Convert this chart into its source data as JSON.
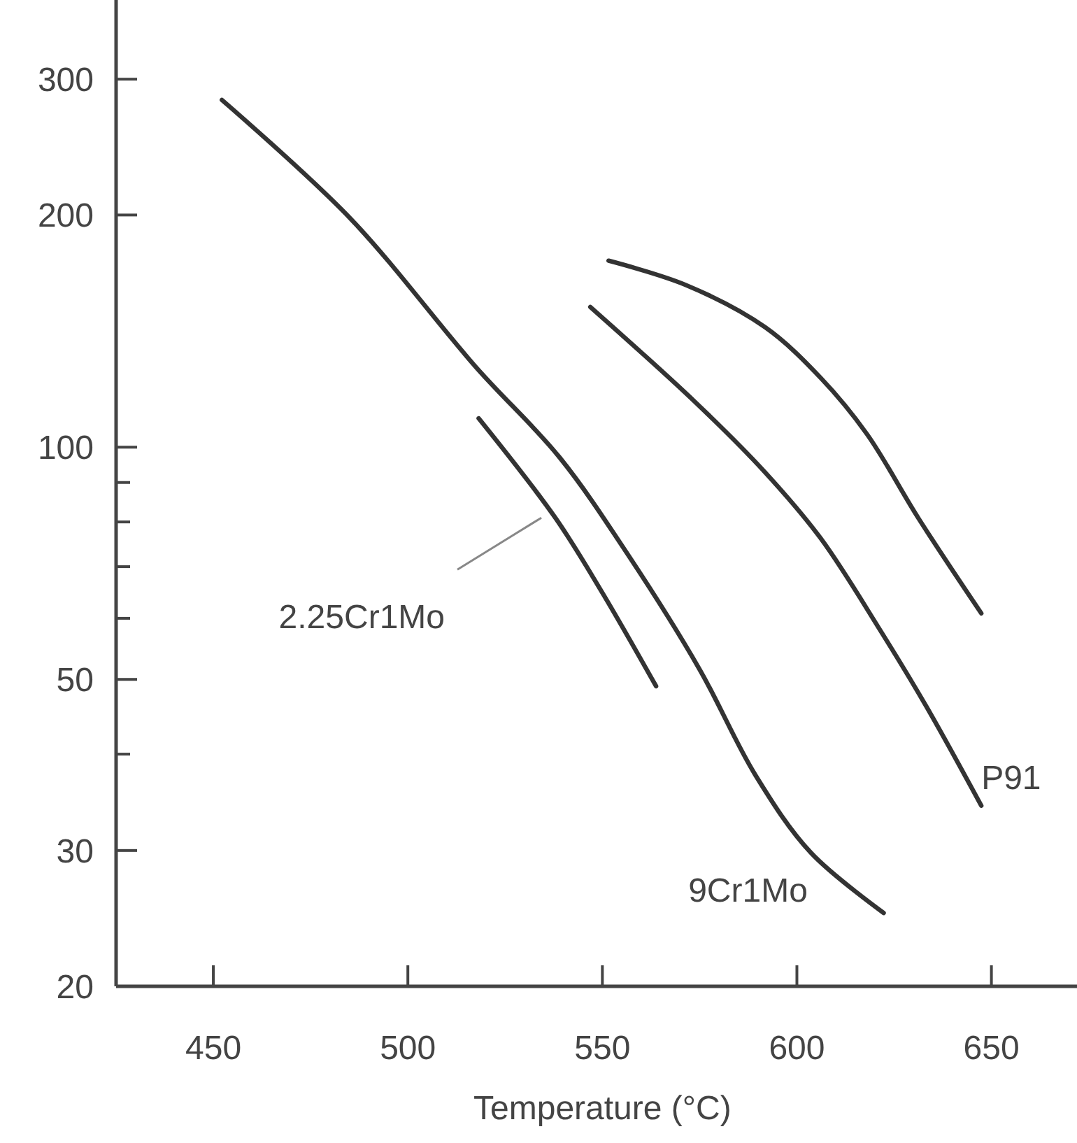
{
  "chart_data": {
    "type": "line",
    "xlabel": "Temperature (°C)",
    "log": "y",
    "xlim": [
      425,
      672
    ],
    "xticks": [
      450,
      500,
      550,
      600,
      650
    ],
    "ylim": [
      20,
      380
    ],
    "yticks": [
      20,
      30,
      {
        "value": 40,
        "label": null
      },
      50,
      {
        "value": 60,
        "label": null
      },
      {
        "value": 70,
        "label": null
      },
      {
        "value": 80,
        "label": null
      },
      {
        "value": 90,
        "label": null
      },
      100,
      200,
      300
    ],
    "grid": false,
    "marker": "none",
    "line_style": "solid",
    "series": [
      {
        "name": "9Cr1Mo",
        "color": "#333333",
        "x": [
          452.2,
          485.2,
          517.5,
          539,
          557,
          575,
          589.3,
          603.6,
          622.3
        ],
        "values": [
          282,
          198,
          127,
          97,
          72,
          51.5,
          37.6,
          29.8,
          24.9
        ]
      },
      {
        "name": "2.25Cr1Mo",
        "color": "#333333",
        "x": [
          518.2,
          537.9,
          549.8,
          563.8
        ],
        "values": [
          109,
          81,
          65,
          49
        ]
      },
      {
        "name": "P91",
        "color": "#333333",
        "x": [
          546.9,
          573.8,
          591.8,
          606.1,
          621.6,
          633.4,
          647.4
        ],
        "values": [
          152,
          114.5,
          92.8,
          76.2,
          57.7,
          46,
          34.3
        ]
      },
      {
        "color": "#333333",
        "x": [
          551.6,
          571.3,
          591.8,
          606.1,
          618,
          631.3,
          647.4
        ],
        "values": [
          174.5,
          162.4,
          143.1,
          123,
          104,
          80.8,
          60.9
        ]
      }
    ]
  }
}
